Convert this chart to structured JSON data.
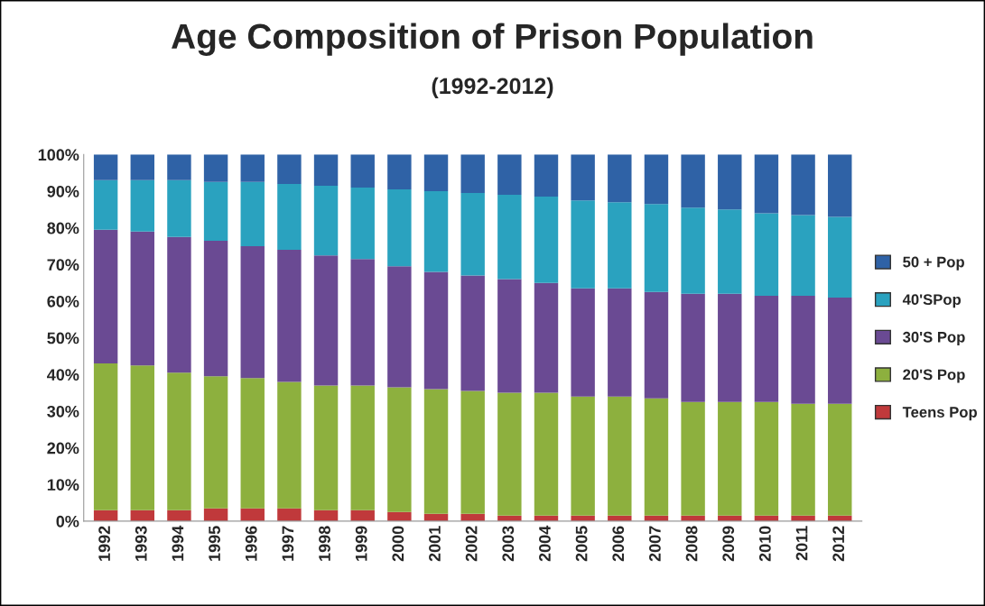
{
  "chart_data": {
    "type": "bar",
    "stacked": true,
    "title": "Age Composition of Prison Population",
    "subtitle": "(1992-2012)",
    "categories": [
      "1992",
      "1993",
      "1994",
      "1995",
      "1996",
      "1997",
      "1998",
      "1999",
      "2000",
      "2001",
      "2002",
      "2003",
      "2004",
      "2005",
      "2006",
      "2007",
      "2008",
      "2009",
      "2010",
      "2011",
      "2012"
    ],
    "series": [
      {
        "name": "Teens Pop",
        "color": "#c0393b",
        "values": [
          3,
          3,
          3,
          3.5,
          3.5,
          3.5,
          3,
          3,
          2.5,
          2,
          2,
          1.5,
          1.5,
          1.5,
          1.5,
          1.5,
          1.5,
          1.5,
          1.5,
          1.5,
          1.5
        ]
      },
      {
        "name": "20'S Pop",
        "color": "#8db03e",
        "values": [
          40,
          39.5,
          37.5,
          36,
          35.5,
          34.5,
          34,
          34,
          34,
          34,
          33.5,
          33.5,
          33.5,
          32.5,
          32.5,
          32,
          31,
          31,
          31,
          30.5,
          30.5
        ]
      },
      {
        "name": "30'S Pop",
        "color": "#6a4a93",
        "values": [
          36.5,
          36.5,
          37,
          37,
          36,
          36,
          35.5,
          34.5,
          33,
          32,
          31.5,
          31,
          30,
          29.5,
          29.5,
          29,
          29.5,
          29.5,
          29,
          29.5,
          29
        ]
      },
      {
        "name": "40'SPop",
        "color": "#2aa2bf",
        "values": [
          13.5,
          14,
          15.5,
          16,
          17.5,
          18,
          19,
          19.5,
          21,
          22,
          22.5,
          23,
          23.5,
          24,
          23.5,
          24,
          23.5,
          23,
          22.5,
          22,
          22
        ]
      },
      {
        "name": "50 + Pop",
        "color": "#2f62a6",
        "values": [
          7,
          7,
          7,
          7.5,
          7.5,
          8,
          8.5,
          9,
          9.5,
          10,
          10.5,
          11,
          11.5,
          12.5,
          13,
          13.5,
          14.5,
          15,
          16,
          16.5,
          17
        ]
      }
    ],
    "ylim": [
      0,
      100
    ],
    "yticks": [
      {
        "value": 0,
        "label": "0%"
      },
      {
        "value": 10,
        "label": "10%"
      },
      {
        "value": 20,
        "label": "20%"
      },
      {
        "value": 30,
        "label": "30%"
      },
      {
        "value": 40,
        "label": "40%"
      },
      {
        "value": 50,
        "label": "50%"
      },
      {
        "value": 60,
        "label": "60%"
      },
      {
        "value": 70,
        "label": "70%"
      },
      {
        "value": 80,
        "label": "80%"
      },
      {
        "value": 90,
        "label": "90%"
      },
      {
        "value": 100,
        "label": "100%"
      }
    ],
    "grid": false,
    "legend": "right"
  }
}
